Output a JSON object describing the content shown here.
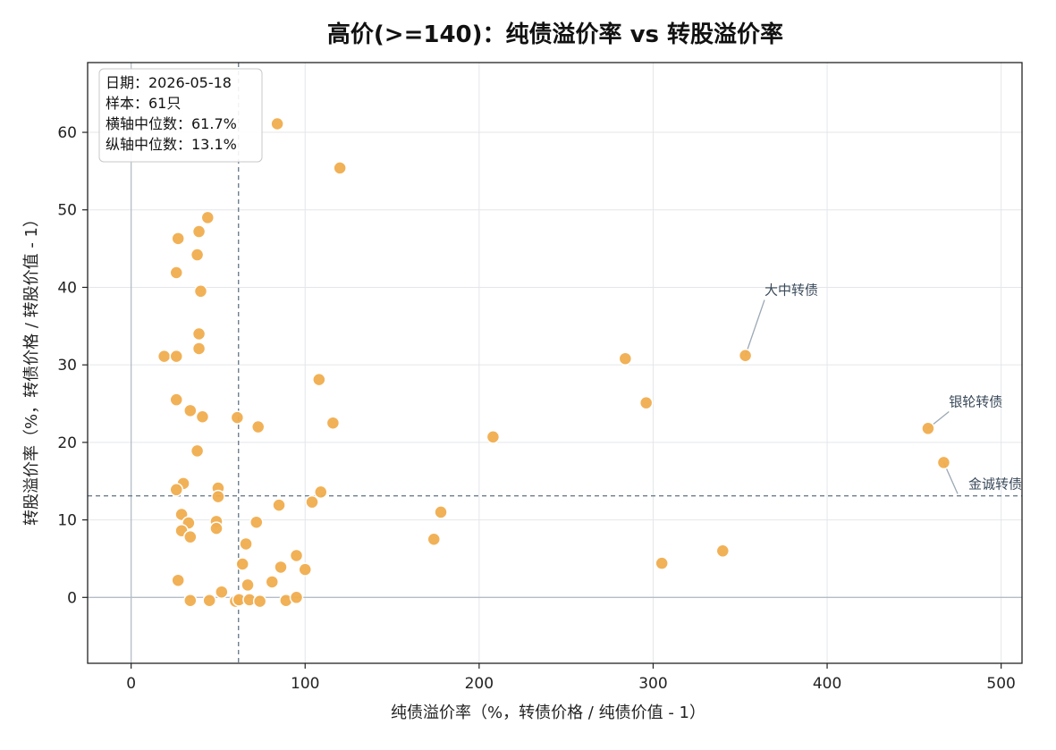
{
  "chart_data": {
    "type": "scatter",
    "title": "高价(>=140)：纯债溢价率 vs 转股溢价率",
    "xlabel": "纯债溢价率（%，转债价格 / 纯债价值 - 1）",
    "ylabel": "转股溢价率（%，转债价格 / 转股价值 - 1）",
    "xlim": [
      -25,
      512
    ],
    "ylim": [
      -8.5,
      69
    ],
    "xticks": [
      0,
      100,
      200,
      300,
      400,
      500
    ],
    "yticks": [
      0,
      10,
      20,
      30,
      40,
      50,
      60
    ],
    "grid": true,
    "point_color": "#f0ad4e",
    "median_x": 61.7,
    "median_y": 13.1,
    "info": {
      "date": "日期：2026-05-18",
      "sample": "样本：61只",
      "median_x_label": "横轴中位数：61.7%",
      "median_y_label": "纵轴中位数：13.1%"
    },
    "points": [
      {
        "x": 84,
        "y": 61.1
      },
      {
        "x": 120,
        "y": 55.4
      },
      {
        "x": 44,
        "y": 49.0
      },
      {
        "x": 27,
        "y": 46.3
      },
      {
        "x": 39,
        "y": 47.2
      },
      {
        "x": 38,
        "y": 44.2
      },
      {
        "x": 26,
        "y": 41.9
      },
      {
        "x": 40,
        "y": 39.5
      },
      {
        "x": 39,
        "y": 34.0
      },
      {
        "x": 39,
        "y": 32.1
      },
      {
        "x": 19,
        "y": 31.1
      },
      {
        "x": 26,
        "y": 31.1
      },
      {
        "x": 108,
        "y": 28.1
      },
      {
        "x": 26,
        "y": 25.5
      },
      {
        "x": 34,
        "y": 24.1
      },
      {
        "x": 41,
        "y": 23.3
      },
      {
        "x": 61,
        "y": 23.2
      },
      {
        "x": 73,
        "y": 22.0
      },
      {
        "x": 116,
        "y": 22.5
      },
      {
        "x": 38,
        "y": 18.9
      },
      {
        "x": 30,
        "y": 14.7
      },
      {
        "x": 26,
        "y": 13.9
      },
      {
        "x": 50,
        "y": 14.1
      },
      {
        "x": 50,
        "y": 13.0
      },
      {
        "x": 109,
        "y": 13.6
      },
      {
        "x": 104,
        "y": 12.3
      },
      {
        "x": 85,
        "y": 11.9
      },
      {
        "x": 29,
        "y": 10.7
      },
      {
        "x": 33,
        "y": 9.6
      },
      {
        "x": 49,
        "y": 9.8
      },
      {
        "x": 72,
        "y": 9.7
      },
      {
        "x": 29,
        "y": 8.6
      },
      {
        "x": 49,
        "y": 8.9
      },
      {
        "x": 34,
        "y": 7.8
      },
      {
        "x": 66,
        "y": 6.9
      },
      {
        "x": 95,
        "y": 5.4
      },
      {
        "x": 64,
        "y": 4.3
      },
      {
        "x": 86,
        "y": 3.9
      },
      {
        "x": 100,
        "y": 3.6
      },
      {
        "x": 27,
        "y": 2.2
      },
      {
        "x": 67,
        "y": 1.6
      },
      {
        "x": 81,
        "y": 2.0
      },
      {
        "x": 52,
        "y": 0.7
      },
      {
        "x": 34,
        "y": -0.4
      },
      {
        "x": 45,
        "y": -0.4
      },
      {
        "x": 60,
        "y": -0.5
      },
      {
        "x": 62,
        "y": -0.3
      },
      {
        "x": 68,
        "y": -0.3
      },
      {
        "x": 74,
        "y": -0.5
      },
      {
        "x": 89,
        "y": -0.4
      },
      {
        "x": 95,
        "y": 0.0
      },
      {
        "x": 178,
        "y": 11.0
      },
      {
        "x": 174,
        "y": 7.5
      },
      {
        "x": 208,
        "y": 20.7
      },
      {
        "x": 284,
        "y": 30.8
      },
      {
        "x": 296,
        "y": 25.1
      },
      {
        "x": 305,
        "y": 4.4
      },
      {
        "x": 340,
        "y": 6.0
      },
      {
        "x": 353,
        "y": 31.2
      },
      {
        "x": 458,
        "y": 21.8
      },
      {
        "x": 467,
        "y": 17.4
      }
    ],
    "annotations": [
      {
        "label": "大中转债",
        "x": 353,
        "y": 31.2,
        "tx": 364,
        "ty": 38.6,
        "anchor": "start"
      },
      {
        "label": "银轮转债",
        "x": 458,
        "y": 21.8,
        "tx": 470,
        "ty": 24.2,
        "anchor": "start"
      },
      {
        "label": "金诚转债",
        "x": 467,
        "y": 17.4,
        "tx": 512,
        "ty": 13.6,
        "anchor": "end"
      }
    ]
  }
}
